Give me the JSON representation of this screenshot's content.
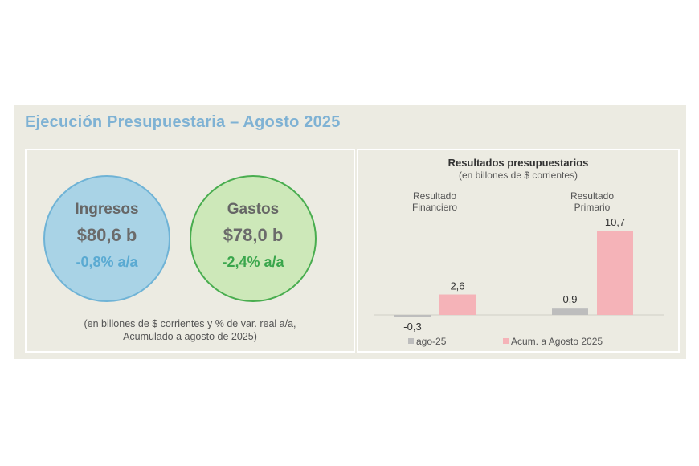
{
  "card": {
    "title": "Ejecución Presupuestaria – Agosto 2025"
  },
  "ingresos": {
    "label": "Ingresos",
    "value": "$80,6 b",
    "variation": "-0,8% a/a"
  },
  "gastos": {
    "label": "Gastos",
    "value": "$78,0 b",
    "variation": "-2,4% a/a"
  },
  "note": {
    "line1": "(en billones de $ corrientes y % de var. real a/a,",
    "line2": "Acumulado a agosto de 2025)"
  },
  "chart_data": {
    "type": "bar",
    "title": "Resultados presupuestarios",
    "subtitle": "(en billones de $ corrientes)",
    "categories": [
      "Resultado Financiero",
      "Resultado Primario"
    ],
    "category_lines": [
      [
        "Resultado",
        "Financiero"
      ],
      [
        "Resultado",
        "Primario"
      ]
    ],
    "series": [
      {
        "name": "ago-25",
        "values": [
          -0.3,
          0.9
        ],
        "labels": [
          "-0,3",
          "0,9"
        ],
        "color": "#bdbdbd"
      },
      {
        "name": "Acum. a Agosto 2025",
        "values": [
          2.6,
          10.7
        ],
        "labels": [
          "2,6",
          "10,7"
        ],
        "color": "#f5b3b8"
      }
    ],
    "ylim": [
      -1,
      12
    ],
    "grid": false,
    "legend": "bottom"
  }
}
